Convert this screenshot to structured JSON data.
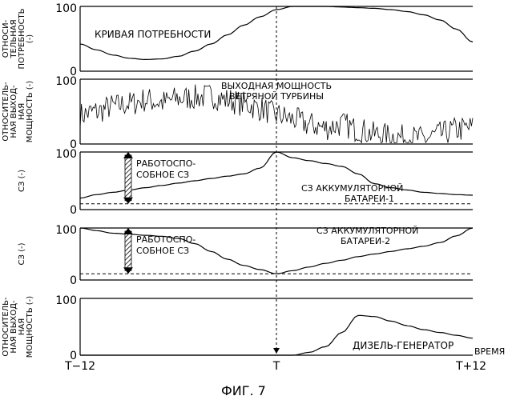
{
  "figure_caption": "ФИГ. 7",
  "chart_data": [
    {
      "type": "line",
      "panel_label": "ОТНОСИ-ТЕЛЬНАЯ ПОТРЕБНОСТЬ (-)",
      "ylabel_lines": [
        "ОТНОСИ-",
        "ТЕЛЬНАЯ",
        "ПОТРЕБНОСТЬ",
        "(-)"
      ],
      "ylim": [
        0,
        100
      ],
      "yticks": [
        "100",
        "0"
      ],
      "annotation": "КРИВАЯ ПОТРЕБНОСТИ",
      "x": [
        -12,
        -11,
        -10,
        -9,
        -8,
        -7,
        -6,
        -5,
        -4,
        -3,
        -2,
        -1,
        0,
        1,
        2,
        3,
        4,
        5,
        6,
        7,
        8,
        9,
        10,
        11,
        12
      ],
      "values": [
        42,
        33,
        25,
        20,
        18,
        19,
        23,
        31,
        42,
        56,
        71,
        84,
        95,
        100,
        100,
        100,
        99,
        98,
        97,
        95,
        92,
        87,
        79,
        65,
        45
      ]
    },
    {
      "type": "line",
      "panel_label": "ОТНОСИТЕЛЬ-НАЯ ВЫХОД-НАЯ МОЩНОСТЬ (-)",
      "ylabel_lines": [
        "ОТНОСИТЕЛЬ-",
        "НАЯ ВЫХОД-",
        "НАЯ",
        "МОЩНОСТЬ (-)"
      ],
      "ylim": [
        0,
        100
      ],
      "yticks": [
        "100",
        "0"
      ],
      "annotation_lines": [
        "ВЫХОДНАЯ МОЩНОСТЬ",
        "ВЕТРЯНОЙ ТУРБИНЫ"
      ],
      "x": [
        -12,
        -11,
        -10,
        -9,
        -8,
        -7,
        -6,
        -5,
        -4,
        -3,
        -2,
        -1,
        0,
        1,
        2,
        3,
        4,
        5,
        6,
        7,
        8,
        9,
        10,
        11,
        12
      ],
      "values": [
        45,
        50,
        58,
        62,
        68,
        64,
        70,
        72,
        74,
        68,
        62,
        55,
        45,
        38,
        30,
        25,
        30,
        22,
        15,
        12,
        10,
        8,
        15,
        22,
        25
      ]
    },
    {
      "type": "line",
      "panel_label": "СЗ (-)",
      "ylabel_lines": [
        "СЗ (-)"
      ],
      "ylim": [
        0,
        100
      ],
      "yticks": [
        "100",
        "0"
      ],
      "annotation_lines": [
        "СЗ АККУМУЛЯТОРНОЙ",
        "БАТАРЕИ-1"
      ],
      "range_label_lines": [
        "РАБОТОСПО-",
        "СОБНОЕ СЗ"
      ],
      "x": [
        -12,
        -11,
        -10,
        -9,
        -8,
        -7,
        -6,
        -5,
        -4,
        -3,
        -2,
        -1,
        0,
        1,
        2,
        3,
        4,
        5,
        6,
        7,
        8,
        9,
        10,
        11,
        12
      ],
      "values": [
        20,
        26,
        30,
        34,
        38,
        42,
        46,
        50,
        54,
        58,
        62,
        72,
        100,
        90,
        85,
        80,
        75,
        62,
        45,
        38,
        34,
        30,
        28,
        26,
        25
      ],
      "min_level": 10
    },
    {
      "type": "line",
      "panel_label": "СЗ (-)",
      "ylabel_lines": [
        "СЗ (-)"
      ],
      "ylim": [
        0,
        100
      ],
      "yticks": [
        "100",
        "0"
      ],
      "annotation_lines": [
        "СЗ АККУМУЛЯТОРНОЙ",
        "БАТАРЕИ-2"
      ],
      "range_label_lines": [
        "РАБОТОСПО-",
        "СОБНОЕ СЗ"
      ],
      "x": [
        -12,
        -11,
        -10,
        -9,
        -8,
        -7,
        -6,
        -5,
        -4,
        -3,
        -2,
        -1,
        0,
        1,
        2,
        3,
        4,
        5,
        6,
        7,
        8,
        9,
        10,
        11,
        12
      ],
      "values": [
        100,
        95,
        90,
        88,
        86,
        84,
        80,
        70,
        55,
        40,
        28,
        20,
        12,
        18,
        25,
        32,
        38,
        45,
        50,
        55,
        60,
        65,
        72,
        85,
        100
      ],
      "min_level": 12
    },
    {
      "type": "line",
      "panel_label": "ОТНОСИТЕЛЬ-НАЯ ВЫХОД-НАЯ МОЩНОСТЬ (-)",
      "ylabel_lines": [
        "ОТНОСИТЕЛЬ-",
        "НАЯ ВЫХОД-",
        "НАЯ",
        "МОЩНОСТЬ (-)"
      ],
      "ylim": [
        0,
        100
      ],
      "yticks": [
        "100",
        "0"
      ],
      "annotation": "ДИЗЕЛЬ-ГЕНЕРАТОР",
      "xlabel": "ВРЕМЯ",
      "xticks": [
        "T−12",
        "T",
        "T+12"
      ],
      "x": [
        -12,
        -11,
        -10,
        -9,
        -8,
        -7,
        -6,
        -5,
        -4,
        -3,
        -2,
        -1,
        0,
        1,
        2,
        3,
        4,
        5,
        6,
        7,
        8,
        9,
        10,
        11,
        12
      ],
      "values": [
        0,
        0,
        0,
        0,
        0,
        0,
        0,
        0,
        0,
        0,
        0,
        0,
        0,
        0,
        5,
        15,
        40,
        70,
        68,
        60,
        52,
        45,
        40,
        35,
        30
      ]
    }
  ]
}
